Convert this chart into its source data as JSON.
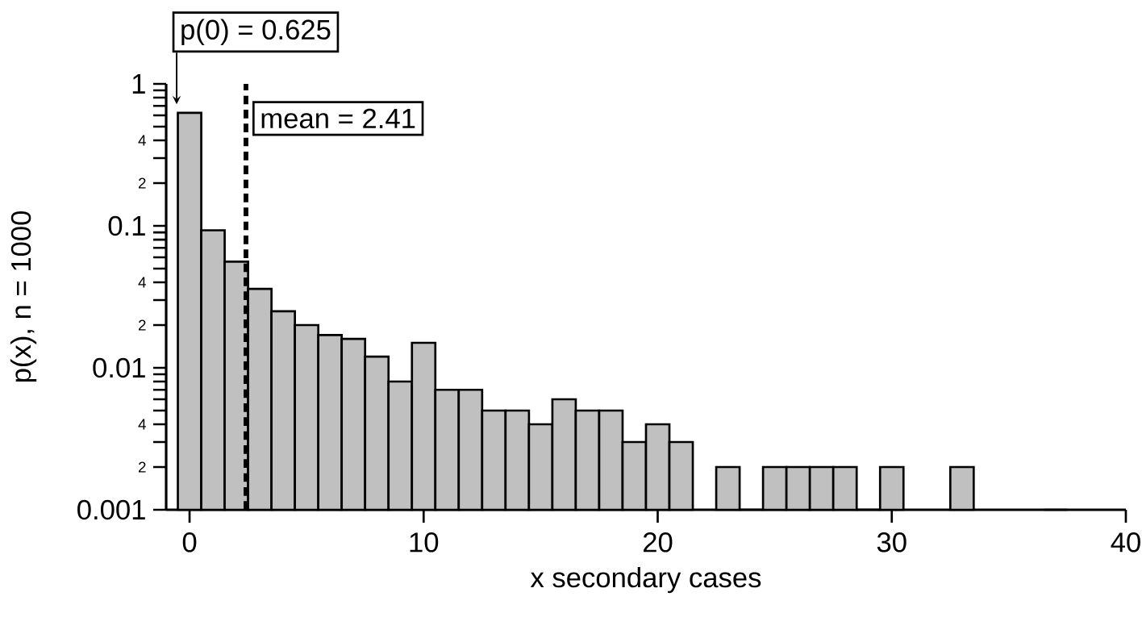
{
  "chart_data": {
    "type": "histogram",
    "xlabel": "x secondary cases",
    "ylabel": "p(x), n = 1000",
    "log": "y",
    "color": "#c0c0c0",
    "bins": [
      -0.5,
      0.5,
      1.5,
      2.5,
      3.5,
      4.5,
      5.5,
      6.5,
      7.5,
      8.5,
      9.5,
      10.5,
      11.5,
      12.5,
      13.5,
      14.5,
      15.5,
      16.5,
      17.5,
      18.5,
      19.5,
      20.5,
      21.5,
      22.5,
      23.5,
      24.5,
      25.5,
      26.5,
      27.5,
      28.5,
      29.5,
      30.5,
      31.5,
      32.5,
      33.5,
      34.5,
      35.5,
      36.5,
      37.5
    ],
    "values": [
      0.625,
      0.093,
      0.056,
      0.036,
      0.025,
      0.02,
      0.017,
      0.016,
      0.012,
      0.008,
      0.015,
      0.007,
      0.007,
      0.005,
      0.005,
      0.004,
      0.006,
      0.005,
      0.005,
      0.003,
      0.004,
      0.003,
      null,
      0.002,
      0.001,
      0.002,
      0.002,
      0.002,
      0.002,
      0.001,
      0.002,
      null,
      null,
      0.002,
      null,
      null,
      null,
      0.001
    ],
    "xlim": [
      -1,
      40
    ],
    "xticks": [
      0,
      10,
      20,
      30,
      40
    ],
    "ylim": [
      0.001,
      1
    ],
    "yticks": [
      0.001,
      {
        "value": 0.002,
        "label": null
      },
      {
        "value": 0.003,
        "label": null
      },
      {
        "value": 0.004,
        "label": null
      },
      {
        "value": 0.005,
        "label": null
      },
      {
        "value": 0.006,
        "label": null
      },
      {
        "value": 0.007,
        "label": null
      },
      {
        "value": 0.008,
        "label": null
      },
      {
        "value": 0.009,
        "label": null
      },
      0.01,
      {
        "value": 0.02,
        "label": null
      },
      {
        "value": 0.03,
        "label": null
      },
      {
        "value": 0.04,
        "label": null
      },
      {
        "value": 0.05,
        "label": null
      },
      {
        "value": 0.06,
        "label": null
      },
      {
        "value": 0.07,
        "label": null
      },
      {
        "value": 0.08,
        "label": null
      },
      {
        "value": 0.09,
        "label": null
      },
      0.1,
      {
        "value": 0.2,
        "label": null
      },
      {
        "value": 0.3,
        "label": null
      },
      {
        "value": 0.4,
        "label": null
      },
      {
        "value": 0.5,
        "label": null
      },
      {
        "value": 0.6,
        "label": null
      },
      {
        "value": 0.7,
        "label": null
      },
      {
        "value": 0.8,
        "label": null
      },
      {
        "value": 0.9,
        "label": null
      },
      1
    ],
    "annotations": [
      {
        "text": "p(0) = 0.625",
        "x": 0,
        "y": 0.625
      },
      "2",
      "4",
      "2",
      "4",
      "2",
      "4"
    ],
    "ref_lines": [
      {
        "axis": "x",
        "value": 2.41,
        "label": "mean = 2.41",
        "color": "#000000",
        "line_style": "dashed"
      }
    ]
  }
}
